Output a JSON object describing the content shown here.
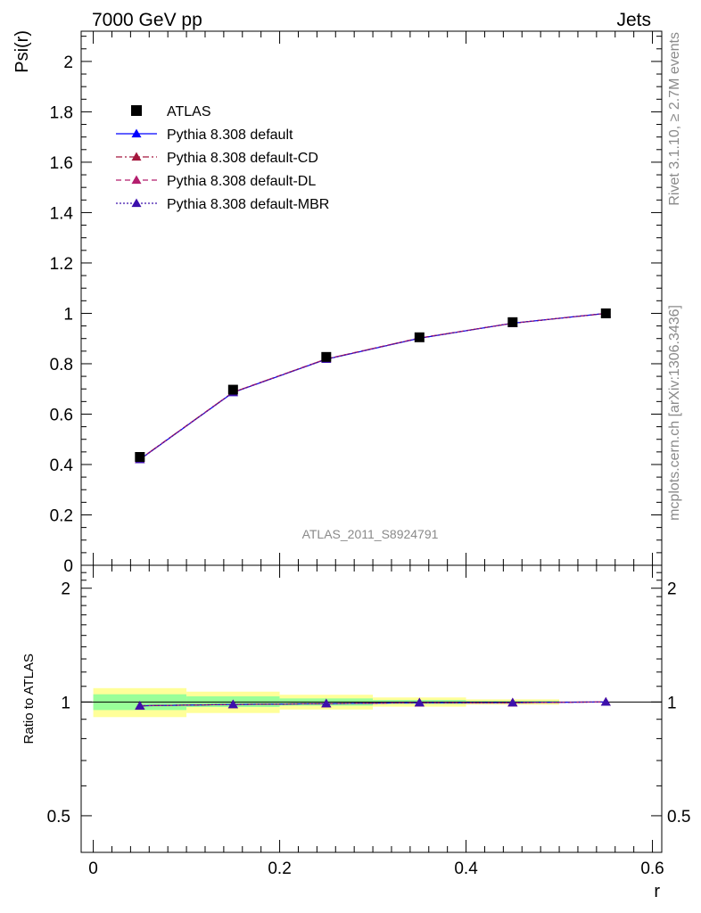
{
  "header": {
    "left": "7000 GeV pp",
    "right": "Jets"
  },
  "side_labels": {
    "rivet": "Rivet 3.1.10, ≥ 2.7M events",
    "mcplots": "mcplots.cern.ch [arXiv:1306.3436]"
  },
  "watermark": "ATLAS_2011_S8924791",
  "chart_data": {
    "type": "line",
    "x": [
      0.05,
      0.15,
      0.25,
      0.35,
      0.45,
      0.55
    ],
    "xlabel": "r",
    "xlim": [
      -0.013,
      0.61
    ],
    "xticks": [
      "0",
      "0.2",
      "0.4",
      "0.6"
    ],
    "main": {
      "ylabel": "Psi(r)",
      "ylim": [
        0,
        2.12
      ],
      "yticks": [
        "0",
        "0.2",
        "0.4",
        "0.6",
        "0.8",
        "1",
        "1.2",
        "1.4",
        "1.6",
        "1.8",
        "2"
      ],
      "data": {
        "name": "ATLAS",
        "values": [
          0.43,
          0.697,
          0.827,
          0.905,
          0.965,
          1.0
        ]
      },
      "series": [
        {
          "name": "Pythia 8.308 default",
          "color": "#0000ff",
          "dash": "solid",
          "values": [
            0.42,
            0.686,
            0.818,
            0.901,
            0.961,
            1.0
          ]
        },
        {
          "name": "Pythia 8.308 default-CD",
          "color": "#a4173d",
          "dash": "dashdot",
          "values": [
            0.421,
            0.687,
            0.819,
            0.902,
            0.961,
            1.0
          ]
        },
        {
          "name": "Pythia 8.308 default-DL",
          "color": "#b41e6e",
          "dash": "dashed",
          "values": [
            0.421,
            0.687,
            0.819,
            0.902,
            0.961,
            1.0
          ]
        },
        {
          "name": "Pythia 8.308 default-MBR",
          "color": "#3c10ac",
          "dash": "dotted",
          "values": [
            0.42,
            0.686,
            0.818,
            0.901,
            0.961,
            1.0
          ]
        }
      ]
    },
    "ratio": {
      "ylabel": "Ratio to ATLAS",
      "scale": "log",
      "ylim": [
        0.4,
        2.3
      ],
      "yticks": [
        "0.5",
        "1",
        "2"
      ],
      "bands": [
        {
          "x": [
            0.0,
            0.1
          ],
          "inner": [
            0.952,
            1.048
          ],
          "outer": [
            0.912,
            1.088
          ]
        },
        {
          "x": [
            0.1,
            0.2
          ],
          "inner": [
            0.97,
            1.035
          ],
          "outer": [
            0.935,
            1.065
          ]
        },
        {
          "x": [
            0.2,
            0.3
          ],
          "inner": [
            0.978,
            1.022
          ],
          "outer": [
            0.955,
            1.045
          ]
        },
        {
          "x": [
            0.3,
            0.4
          ],
          "inner": [
            0.988,
            1.012
          ],
          "outer": [
            0.972,
            1.028
          ]
        },
        {
          "x": [
            0.4,
            0.5
          ],
          "inner": [
            0.994,
            1.006
          ],
          "outer": [
            0.984,
            1.016
          ]
        },
        {
          "x": [
            0.5,
            0.6
          ],
          "inner": [
            1.0,
            1.0
          ],
          "outer": [
            1.0,
            1.0
          ]
        }
      ],
      "series_values": [
        0.977,
        0.985,
        0.99,
        0.996,
        0.996,
        1.0
      ]
    }
  }
}
